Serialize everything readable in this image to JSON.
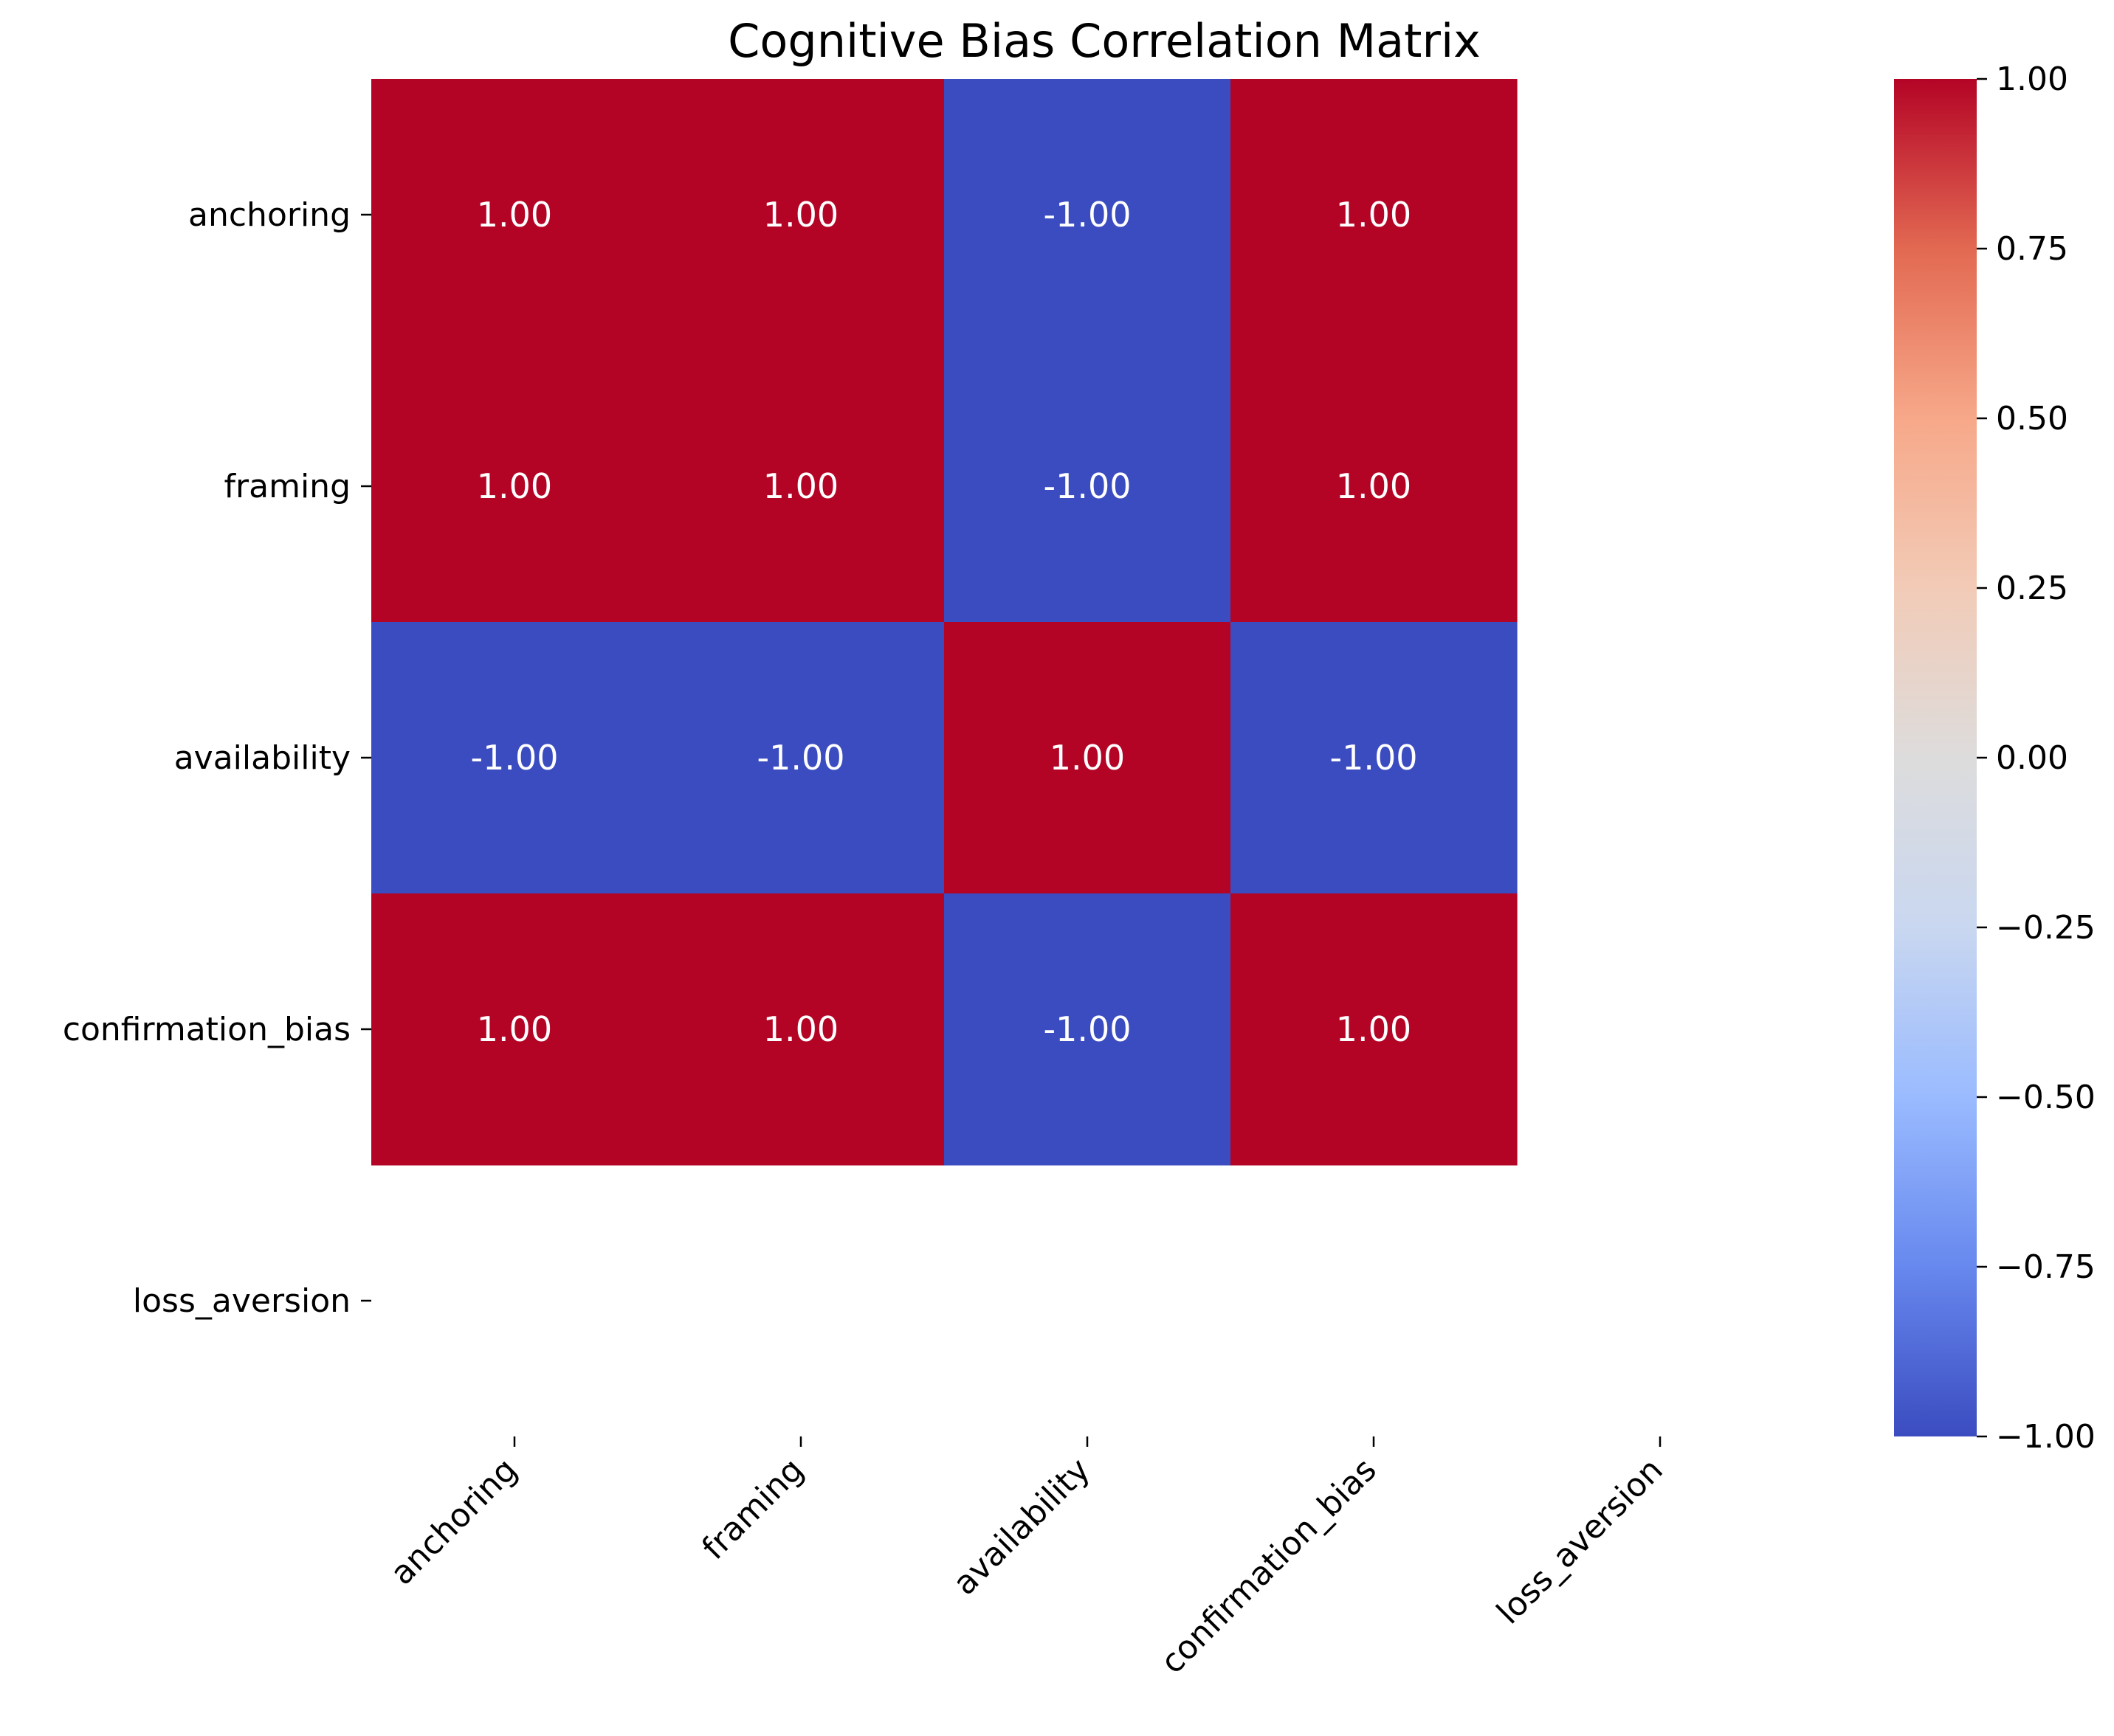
{
  "chart_data": {
    "type": "heatmap",
    "title": "Cognitive Bias Correlation Matrix",
    "xlabel": "",
    "ylabel": "",
    "row_labels": [
      "anchoring",
      "framing",
      "availability",
      "confirmation_bias",
      "loss_aversion"
    ],
    "col_labels": [
      "anchoring",
      "framing",
      "availability",
      "confirmation_bias",
      "loss_aversion"
    ],
    "values": [
      [
        1.0,
        1.0,
        -1.0,
        1.0,
        null
      ],
      [
        1.0,
        1.0,
        -1.0,
        1.0,
        null
      ],
      [
        -1.0,
        -1.0,
        1.0,
        -1.0,
        null
      ],
      [
        1.0,
        1.0,
        -1.0,
        1.0,
        null
      ],
      [
        null,
        null,
        null,
        null,
        null
      ]
    ],
    "annotation_format": "0.00",
    "colormap": "coolwarm",
    "colorbar": {
      "min": -1.0,
      "max": 1.0,
      "ticks": [
        1.0,
        0.75,
        0.5,
        0.25,
        0.0,
        -0.25,
        -0.5,
        -0.75,
        -1.0
      ],
      "tick_labels": [
        "1.00",
        "0.75",
        "0.50",
        "0.25",
        "0.00",
        "−0.25",
        "−0.50",
        "−0.75",
        "−1.00"
      ]
    },
    "colors": {
      "max": "#b40426",
      "min": "#3b4cc0",
      "gradient_stops": [
        "#3b4cc0",
        "#6788ee",
        "#9abbff",
        "#c9d7f0",
        "#dddcdc",
        "#f2cbb7",
        "#f7a889",
        "#e26952",
        "#b40426"
      ]
    }
  }
}
